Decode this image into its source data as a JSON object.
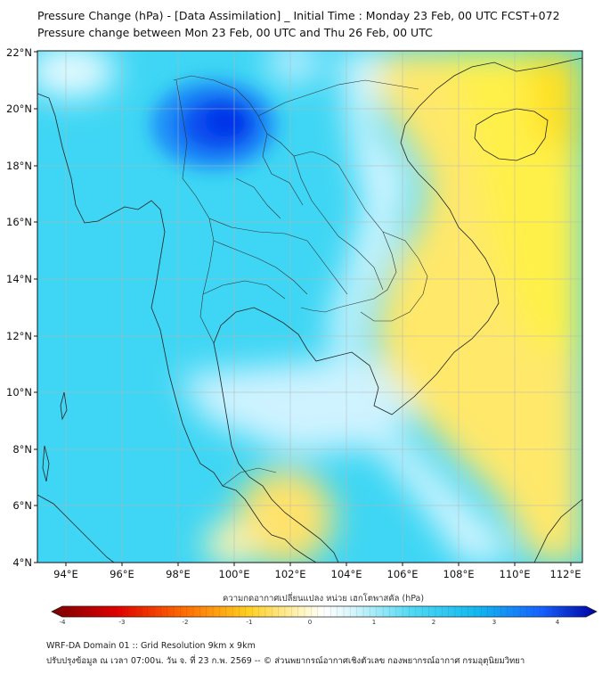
{
  "title": {
    "line1": "Pressure Change (hPa) - [Data Assimilation] _ Initial Time : Monday 23 Feb, 00 UTC FCST+072",
    "line2": "Pressure change between Mon 23 Feb, 00 UTC and Thu 26 Feb, 00 UTC"
  },
  "map": {
    "lat_range": [
      4,
      22
    ],
    "lon_range": [
      93,
      112.5
    ],
    "lat_ticks": [
      "4°N",
      "6°N",
      "8°N",
      "10°N",
      "12°N",
      "14°N",
      "16°N",
      "18°N",
      "20°N",
      "22°N"
    ],
    "lon_ticks": [
      "94°E",
      "96°E",
      "98°E",
      "100°E",
      "102°E",
      "104°E",
      "106°E",
      "108°E",
      "110°E",
      "112°E"
    ],
    "colors": {
      "strong_fall": "#0026ff",
      "fall": "#28d0f4",
      "neutral": "#ffffff",
      "rise": "#ffe24a",
      "strong_rise": "#8b0000"
    }
  },
  "colorbar": {
    "label": "ความกดอากาศเปลี่ยนแปลง หน่วย เฮกโตพาสคัล (hPa)",
    "ticks": [
      "-4",
      "-3",
      "-2",
      "-1",
      "0",
      "1",
      "2",
      "3",
      "4"
    ],
    "min": -4,
    "max": 4
  },
  "footer": {
    "line1": "WRF-DA Domain 01 :: Grid Resolution 9km x 9km",
    "line2": "ปรับปรุงข้อมูล ณ เวลา 07:00น. วัน จ. ที่ 23 ก.พ. 2569 -- © ส่วนพยากรณ์อากาศเชิงตัวเลข กองพยากรณ์อากาศ กรมอุตุนิยมวิทยา"
  }
}
